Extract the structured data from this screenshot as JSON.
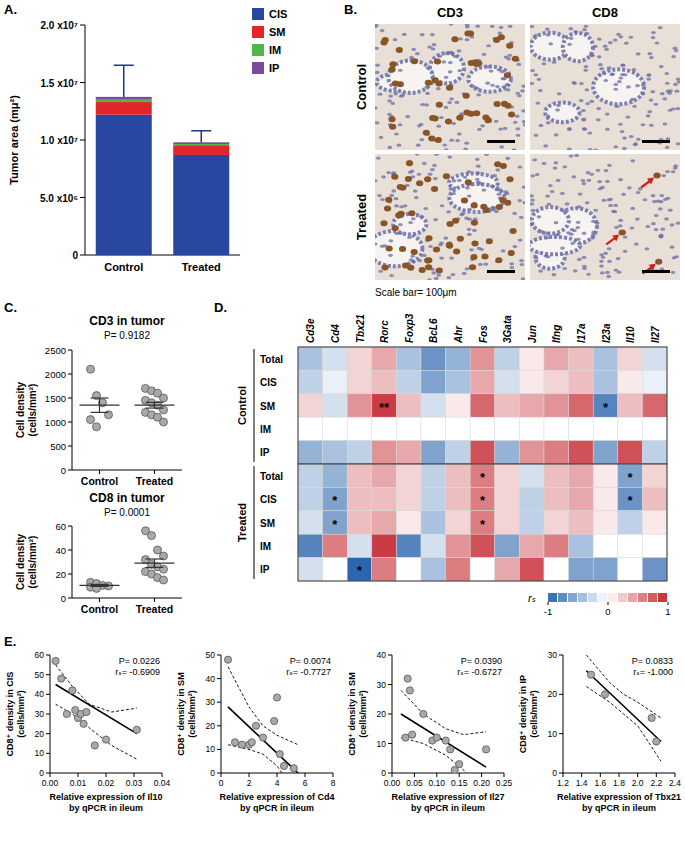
{
  "panel_labels": [
    "A.",
    "B.",
    "C.",
    "D.",
    "E."
  ],
  "chart_data": [
    {
      "type": "bar",
      "stacked": true,
      "legend": "right",
      "categories": [
        "Control",
        "Treated"
      ],
      "series": [
        {
          "name": "CIS",
          "color": "#2747a0",
          "values": [
            12200000,
            8700000
          ]
        },
        {
          "name": "SM",
          "color": "#e0262b",
          "values": [
            1100000,
            850000
          ]
        },
        {
          "name": "IM",
          "color": "#4cb848",
          "values": [
            200000,
            100000
          ]
        },
        {
          "name": "IP",
          "color": "#7a4a9c",
          "values": [
            250000,
            150000
          ]
        }
      ],
      "errors": [
        2750000,
        1000000
      ],
      "ylabel": "Tumor area (mμ²)",
      "ylim": [
        0,
        20000000
      ],
      "yticks": [
        0,
        {
          "value": 5000000,
          "label": "5.0 x10⁶"
        },
        {
          "value": 10000000,
          "label": "1.0 x10⁷"
        },
        {
          "value": 15000000,
          "label": "1.5 x10⁷"
        },
        {
          "value": 20000000,
          "label": "2.0 x10⁷"
        }
      ]
    },
    {
      "type": "image",
      "columns": [
        "CD3",
        "CD8"
      ],
      "rows": [
        "Control",
        "Treated"
      ],
      "caption": "Scale bar= 100μm"
    },
    {
      "type": "strip",
      "title": "CD3 in tumor",
      "annotation": "P= 0.9182",
      "ylabel": [
        "Cell density",
        "(cells/mm²)"
      ],
      "categories": [
        "Control",
        "Treated"
      ],
      "groups": [
        {
          "values": [
            2100,
            1550,
            1400,
            1150,
            1050,
            900
          ],
          "mean": 1350,
          "sem": 150
        },
        {
          "values": [
            1700,
            1650,
            1600,
            1500,
            1450,
            1400,
            1350,
            1250,
            1200,
            1150,
            1100,
            1000
          ],
          "mean": 1350,
          "sem": 60
        }
      ],
      "ylim": [
        0,
        2500
      ],
      "yticks": [
        0,
        500,
        1000,
        1500,
        2000,
        2500
      ]
    },
    {
      "type": "strip",
      "title": "CD8 in tumor",
      "annotation": "P= 0.0001",
      "ylabel": [
        "Cell density",
        "(cells/mm²)"
      ],
      "categories": [
        "Control",
        "Treated"
      ],
      "groups": [
        {
          "values": [
            13,
            12,
            10.5,
            10,
            9,
            8
          ],
          "mean": 10.5,
          "sem": 0.8
        },
        {
          "values": [
            56,
            52,
            40,
            35,
            32,
            28,
            26,
            24,
            22,
            20,
            17,
            15
          ],
          "mean": 29,
          "sem": 3.5
        }
      ],
      "ylim": [
        0,
        60
      ],
      "yticks": [
        0,
        20,
        40,
        60
      ]
    },
    {
      "type": "heatmap",
      "columns": [
        "Cd3e",
        "Cd4",
        "Tbx21",
        "Rorc",
        "Foxp3",
        "BcL6",
        "Ahr",
        "Fos",
        "3Gata",
        "Jun",
        "Ifng",
        "I17a",
        "I23a",
        "Il10",
        "Il27"
      ],
      "rows": [
        "Total",
        "CIS",
        "SM",
        "IM",
        "IP"
      ],
      "groups": [
        {
          "name": "Control",
          "values": [
            [
              -0.4,
              -0.2,
              0.2,
              0.4,
              -0.4,
              -0.7,
              -0.5,
              0.5,
              -0.3,
              0.1,
              0.4,
              0.3,
              -0.4,
              0.2,
              -0.2
            ],
            [
              -0.3,
              -0.1,
              0.2,
              0.3,
              -0.3,
              -0.6,
              -0.4,
              0.4,
              -0.2,
              0.1,
              0.2,
              0.3,
              -0.4,
              0.1,
              -0.1
            ],
            [
              0.2,
              -0.2,
              0.5,
              0.9,
              0.3,
              -0.2,
              0.1,
              0.7,
              0.3,
              0.4,
              0.5,
              0.7,
              -0.8,
              0.3,
              0.7
            ],
            [
              null,
              null,
              null,
              null,
              null,
              null,
              null,
              null,
              null,
              null,
              null,
              null,
              null,
              null,
              null
            ],
            [
              -0.5,
              -0.4,
              -0.3,
              0.5,
              0.4,
              -0.6,
              -0.3,
              0.8,
              -0.5,
              0.5,
              0.6,
              0.8,
              -0.6,
              0.8,
              -0.3
            ]
          ],
          "stars": [
            [
              null,
              null,
              null,
              null,
              null,
              null,
              null,
              null,
              null,
              null,
              null,
              null,
              null,
              null,
              null
            ],
            [
              null,
              null,
              null,
              null,
              null,
              null,
              null,
              null,
              null,
              null,
              null,
              null,
              null,
              null,
              null
            ],
            [
              null,
              null,
              null,
              "**",
              null,
              null,
              null,
              null,
              null,
              null,
              null,
              null,
              "*",
              null,
              null
            ],
            [
              null,
              null,
              null,
              null,
              null,
              null,
              null,
              null,
              null,
              null,
              null,
              null,
              null,
              null,
              null
            ],
            [
              null,
              null,
              null,
              null,
              null,
              null,
              null,
              null,
              null,
              null,
              null,
              null,
              null,
              null,
              null
            ]
          ]
        },
        {
          "name": "Treated",
          "values": [
            [
              -0.3,
              -0.5,
              0.3,
              0.4,
              0.2,
              -0.3,
              0.3,
              0.6,
              0.2,
              -0.2,
              0.3,
              0.4,
              0.1,
              -0.6,
              0.2
            ],
            [
              -0.3,
              -0.6,
              0.3,
              0.3,
              0.2,
              -0.3,
              0.3,
              0.6,
              0.2,
              -0.3,
              0.3,
              0.4,
              0.1,
              -0.7,
              0.3
            ],
            [
              -0.2,
              -0.6,
              0.3,
              0.4,
              0.1,
              -0.4,
              0.2,
              0.6,
              0.2,
              -0.3,
              0.2,
              0.3,
              0.1,
              -0.3,
              0.1
            ],
            [
              -0.8,
              0.6,
              -0.2,
              0.9,
              -0.8,
              -0.2,
              0.5,
              0.8,
              -0.6,
              0.4,
              0.6,
              -0.4,
              null,
              null,
              null
            ],
            [
              -0.2,
              null,
              -1,
              0.6,
              null,
              -0.4,
              0.6,
              null,
              0.4,
              0.8,
              null,
              -0.6,
              -0.6,
              null,
              -0.7
            ]
          ],
          "stars": [
            [
              null,
              null,
              null,
              null,
              null,
              null,
              null,
              "*",
              null,
              null,
              null,
              null,
              null,
              "*",
              null
            ],
            [
              null,
              "*",
              null,
              null,
              null,
              null,
              null,
              "*",
              null,
              null,
              null,
              null,
              null,
              "*",
              null
            ],
            [
              null,
              "*",
              null,
              null,
              null,
              null,
              null,
              "*",
              null,
              null,
              null,
              null,
              null,
              null,
              null
            ],
            [
              null,
              null,
              null,
              null,
              null,
              null,
              null,
              null,
              null,
              null,
              null,
              null,
              null,
              null,
              null
            ],
            [
              null,
              null,
              "*",
              null,
              null,
              null,
              null,
              null,
              null,
              null,
              null,
              null,
              null,
              null,
              null
            ]
          ]
        }
      ],
      "colorbar": {
        "range": [
          -1,
          1
        ],
        "ticks": [
          -1,
          0,
          1
        ],
        "label": "rₛ"
      }
    },
    {
      "type": "scatter",
      "xlabel": [
        "Relative expression of Il10",
        "by qPCR in ileum"
      ],
      "ylabel": [
        "CD8⁺ density in CIS",
        "(cells/mm²)"
      ],
      "annotations": [
        "P= 0.0226",
        "rₛ= -0.6909"
      ],
      "x": [
        0.002,
        0.004,
        0.006,
        0.008,
        0.009,
        0.01,
        0.011,
        0.012,
        0.013,
        0.016,
        0.02,
        0.031
      ],
      "values": [
        57,
        48,
        30,
        42,
        32,
        28,
        30,
        25,
        31,
        14,
        17,
        22
      ],
      "fit": {
        "x": [
          0.002,
          0.031
        ],
        "values": [
          45,
          20
        ]
      },
      "ci_upper": {
        "x": [
          0.002,
          0.008,
          0.014,
          0.022,
          0.031
        ],
        "values": [
          55,
          44,
          35,
          31,
          33
        ]
      },
      "ci_lower": {
        "x": [
          0.002,
          0.008,
          0.014,
          0.022,
          0.031
        ],
        "values": [
          35,
          30,
          23,
          14,
          7
        ]
      },
      "xlim": [
        0,
        0.04
      ],
      "xticks": [
        {
          "value": 0,
          "label": "0.00"
        },
        0.01,
        0.02,
        0.03,
        0.04
      ],
      "ylim": [
        0,
        60
      ],
      "yticks": [
        0,
        10,
        20,
        30,
        40,
        50,
        60
      ]
    },
    {
      "type": "scatter",
      "xlabel": [
        "Relative expression of Cd4",
        "by qPCR in ileum"
      ],
      "ylabel": [
        "CD8⁺ density in SM",
        "(cells/mm²)"
      ],
      "annotations": [
        "P= 0.0074",
        "rₛ= -0.7727"
      ],
      "x": [
        0.5,
        1.0,
        1.5,
        2.0,
        2.2,
        2.5,
        3.0,
        3.8,
        4.0,
        4.2,
        4.5,
        5.2
      ],
      "values": [
        48,
        13,
        12,
        12,
        13,
        20,
        15,
        22,
        32,
        8,
        3,
        2
      ],
      "fit": {
        "x": [
          0.5,
          5.5
        ],
        "values": [
          28,
          0
        ]
      },
      "ci_upper": {
        "x": [
          0.5,
          2,
          3,
          4,
          5.5
        ],
        "values": [
          45,
          28,
          20,
          16,
          12
        ]
      },
      "ci_lower": {
        "x": [
          0.5,
          2,
          3,
          4,
          5.5
        ],
        "values": [
          12,
          10,
          8,
          3,
          -10
        ]
      },
      "xlim": [
        0,
        8
      ],
      "xticks": [
        0,
        2,
        4,
        6,
        8
      ],
      "ylim": [
        0,
        50
      ],
      "yticks": [
        0,
        10,
        20,
        30,
        40,
        50
      ]
    },
    {
      "type": "scatter",
      "xlabel": [
        "Relative expression of Il27",
        "by qPCR in ileum"
      ],
      "ylabel": [
        "CD8⁺ density in SM",
        "(cells/mm²)"
      ],
      "annotations": [
        "P= 0.0390",
        "rₛ= -0.6727"
      ],
      "x": [
        0.03,
        0.035,
        0.04,
        0.045,
        0.07,
        0.09,
        0.1,
        0.12,
        0.13,
        0.14,
        0.15,
        0.21
      ],
      "values": [
        12,
        32,
        28,
        13,
        20,
        11,
        12,
        11,
        8,
        1,
        3,
        8
      ],
      "fit": {
        "x": [
          0.02,
          0.21
        ],
        "values": [
          20,
          2
        ]
      },
      "ci_upper": {
        "x": [
          0.02,
          0.07,
          0.12,
          0.16,
          0.21
        ],
        "values": [
          28,
          20,
          15,
          13,
          14
        ]
      },
      "ci_lower": {
        "x": [
          0.02,
          0.07,
          0.12,
          0.16,
          0.21
        ],
        "values": [
          12,
          10,
          6,
          1,
          -10
        ]
      },
      "xlim": [
        0,
        0.25
      ],
      "xticks": [
        {
          "value": 0,
          "label": "0.00"
        },
        0.05,
        {
          "value": 0.1,
          "label": "0.10"
        },
        0.15,
        {
          "value": 0.2,
          "label": "0.20"
        },
        0.25
      ],
      "ylim": [
        0,
        40
      ],
      "yticks": [
        0,
        10,
        20,
        30,
        40
      ]
    },
    {
      "type": "scatter",
      "xlabel": [
        "Relative expression of Tbx21",
        "by qPCR in ileum"
      ],
      "ylabel": [
        "CD8⁺ density in IP",
        "(cells/mm²)"
      ],
      "annotations": [
        "P= 0.0833",
        "rₛ= -1.000"
      ],
      "x": [
        1.5,
        1.65,
        2.15,
        2.2
      ],
      "values": [
        25,
        20,
        14,
        8
      ],
      "fit": {
        "x": [
          1.45,
          2.25
        ],
        "values": [
          26,
          8
        ]
      },
      "ci_upper": {
        "x": [
          1.45,
          1.7,
          1.85,
          2.0,
          2.25
        ],
        "values": [
          30,
          23,
          20,
          18,
          14
        ]
      },
      "ci_lower": {
        "x": [
          1.45,
          1.7,
          1.85,
          2.0,
          2.25
        ],
        "values": [
          22,
          18,
          15,
          12,
          3
        ]
      },
      "xlim": [
        1.2,
        2.4
      ],
      "xticks": [
        1.2,
        1.4,
        1.6,
        1.8,
        {
          "value": 2,
          "label": "2.0"
        },
        2.2,
        2.4
      ],
      "ylim": [
        0,
        30
      ],
      "yticks": [
        0,
        10,
        20,
        30
      ]
    }
  ]
}
